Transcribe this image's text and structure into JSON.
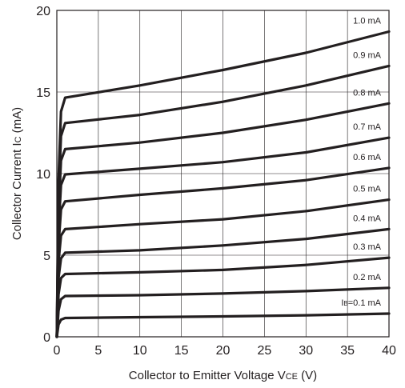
{
  "chart_data": {
    "type": "line",
    "xlabel": {
      "main": "Collector to Emitter Voltage V",
      "sub": "CE",
      "unit": " (V)"
    },
    "ylabel": {
      "main": "Collector Current I",
      "sub": "C",
      "unit": " (mA)"
    },
    "xlim": [
      0,
      40
    ],
    "ylim": [
      0,
      20
    ],
    "xticks": [
      0,
      5,
      10,
      15,
      20,
      25,
      30,
      35,
      40
    ],
    "yticks": [
      0,
      5,
      10,
      15,
      20
    ],
    "grid": true,
    "series": [
      {
        "name": "0.1 mA",
        "label_prefix": "I",
        "label_sub": "B",
        "label_rest": "=0.1 mA",
        "points": [
          [
            0,
            0
          ],
          [
            0.2,
            0.75
          ],
          [
            0.5,
            1.05
          ],
          [
            1,
            1.15
          ],
          [
            10,
            1.2
          ],
          [
            20,
            1.25
          ],
          [
            30,
            1.32
          ],
          [
            40,
            1.42
          ]
        ]
      },
      {
        "name": "0.2 mA",
        "label_prefix": "",
        "label_sub": "",
        "label_rest": "0.2 mA",
        "points": [
          [
            0,
            0
          ],
          [
            0.2,
            1.6
          ],
          [
            0.5,
            2.3
          ],
          [
            1,
            2.5
          ],
          [
            10,
            2.55
          ],
          [
            20,
            2.65
          ],
          [
            30,
            2.8
          ],
          [
            40,
            3.0
          ]
        ]
      },
      {
        "name": "0.3 mA",
        "label_prefix": "",
        "label_sub": "",
        "label_rest": "0.3 mA",
        "points": [
          [
            0,
            0
          ],
          [
            0.2,
            2.6
          ],
          [
            0.5,
            3.6
          ],
          [
            1,
            3.85
          ],
          [
            10,
            3.95
          ],
          [
            20,
            4.1
          ],
          [
            30,
            4.4
          ],
          [
            40,
            4.85
          ]
        ]
      },
      {
        "name": "0.4 mA",
        "label_prefix": "",
        "label_sub": "",
        "label_rest": "0.4 mA",
        "points": [
          [
            0,
            0
          ],
          [
            0.2,
            3.6
          ],
          [
            0.5,
            4.8
          ],
          [
            1,
            5.15
          ],
          [
            10,
            5.3
          ],
          [
            20,
            5.6
          ],
          [
            30,
            6.0
          ],
          [
            40,
            6.6
          ]
        ]
      },
      {
        "name": "0.5 mA",
        "label_prefix": "",
        "label_sub": "",
        "label_rest": "0.5 mA",
        "points": [
          [
            0,
            0
          ],
          [
            0.2,
            4.6
          ],
          [
            0.5,
            6.2
          ],
          [
            1,
            6.6
          ],
          [
            10,
            6.9
          ],
          [
            20,
            7.2
          ],
          [
            30,
            7.7
          ],
          [
            40,
            8.4
          ]
        ]
      },
      {
        "name": "0.6 mA",
        "label_prefix": "",
        "label_sub": "",
        "label_rest": "0.6 mA",
        "points": [
          [
            0,
            0
          ],
          [
            0.2,
            5.6
          ],
          [
            0.5,
            7.8
          ],
          [
            1,
            8.3
          ],
          [
            10,
            8.7
          ],
          [
            20,
            9.1
          ],
          [
            30,
            9.6
          ],
          [
            40,
            10.35
          ]
        ]
      },
      {
        "name": "0.7 mA",
        "label_prefix": "",
        "label_sub": "",
        "label_rest": "0.7 mA",
        "points": [
          [
            0,
            0
          ],
          [
            0.2,
            6.6
          ],
          [
            0.5,
            9.3
          ],
          [
            1,
            9.95
          ],
          [
            10,
            10.3
          ],
          [
            20,
            10.7
          ],
          [
            30,
            11.3
          ],
          [
            40,
            12.2
          ]
        ]
      },
      {
        "name": "0.8 mA",
        "label_prefix": "",
        "label_sub": "",
        "label_rest": "0.8 mA",
        "points": [
          [
            0,
            0
          ],
          [
            0.2,
            7.6
          ],
          [
            0.5,
            10.8
          ],
          [
            1,
            11.5
          ],
          [
            10,
            11.9
          ],
          [
            20,
            12.5
          ],
          [
            30,
            13.3
          ],
          [
            40,
            14.3
          ]
        ]
      },
      {
        "name": "0.9 mA",
        "label_prefix": "",
        "label_sub": "",
        "label_rest": "0.9 mA",
        "points": [
          [
            0,
            0
          ],
          [
            0.2,
            8.6
          ],
          [
            0.5,
            12.3
          ],
          [
            1,
            13.1
          ],
          [
            10,
            13.6
          ],
          [
            20,
            14.4
          ],
          [
            30,
            15.4
          ],
          [
            40,
            16.6
          ]
        ]
      },
      {
        "name": "1.0 mA",
        "label_prefix": "",
        "label_sub": "",
        "label_rest": "1.0 mA",
        "points": [
          [
            0,
            0
          ],
          [
            0.2,
            9.6
          ],
          [
            0.5,
            13.8
          ],
          [
            1,
            14.65
          ],
          [
            10,
            15.4
          ],
          [
            20,
            16.35
          ],
          [
            30,
            17.4
          ],
          [
            40,
            18.7
          ]
        ]
      }
    ]
  }
}
